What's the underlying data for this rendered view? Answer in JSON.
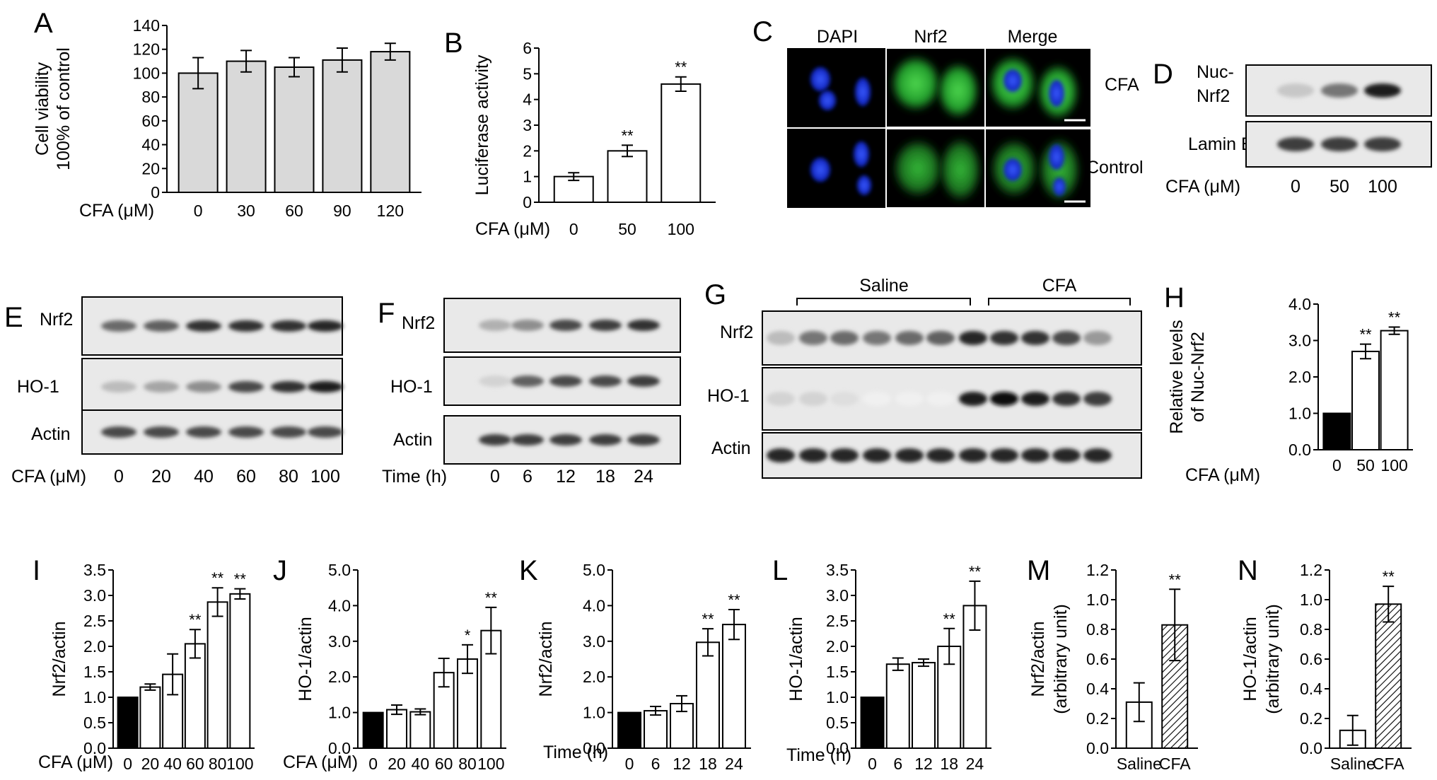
{
  "figure": {
    "panels": {
      "A": "A",
      "B": "B",
      "C": "C",
      "D": "D",
      "E": "E",
      "F": "F",
      "G": "G",
      "H": "H",
      "I": "I",
      "J": "J",
      "K": "K",
      "L": "L",
      "M": "M",
      "N": "N"
    }
  },
  "colors": {
    "black": "#000000",
    "gray_bar": "#d9d9d9",
    "white_bar": "#ffffff",
    "nucleus": "#1a33e6",
    "cytoplasm": "#2fa82f"
  },
  "panel_C": {
    "col_labels": [
      "DAPI",
      "Nrf2",
      "Merge"
    ],
    "row_labels": [
      "CFA",
      "Control"
    ]
  },
  "panel_D": {
    "bands": [
      "Nuc-\nNrf2",
      "Lamin B"
    ],
    "band_label_1": "Nuc-",
    "band_label_1b": "Nrf2",
    "band_label_2": "Lamin B",
    "axis_label": "CFA (μM)",
    "lanes": [
      "0",
      "50",
      "100"
    ],
    "nrf2_intensity": [
      0.2,
      0.55,
      0.95
    ],
    "laminb_intensity": [
      0.8,
      0.8,
      0.8
    ]
  },
  "panel_E": {
    "band_labels": [
      "Nrf2",
      "HO-1",
      "Actin"
    ],
    "axis_label": "CFA (μM)",
    "lanes": [
      "0",
      "20",
      "40",
      "60",
      "80",
      "100"
    ],
    "intensity": [
      [
        0.6,
        0.65,
        0.85,
        0.85,
        0.85,
        0.9
      ],
      [
        0.25,
        0.35,
        0.45,
        0.75,
        0.85,
        0.95
      ],
      [
        0.75,
        0.75,
        0.75,
        0.75,
        0.75,
        0.75
      ]
    ]
  },
  "panel_F": {
    "band_labels": [
      "Nrf2",
      "HO-1",
      "Actin"
    ],
    "axis_label": "Time (h)",
    "lanes": [
      "0",
      "6",
      "12",
      "18",
      "24"
    ],
    "intensity": [
      [
        0.3,
        0.45,
        0.75,
        0.8,
        0.85
      ],
      [
        0.15,
        0.65,
        0.75,
        0.75,
        0.8
      ],
      [
        0.8,
        0.8,
        0.8,
        0.8,
        0.8
      ]
    ]
  },
  "panel_G": {
    "group_labels": [
      "Saline",
      "CFA"
    ],
    "band_labels": [
      "Nrf2",
      "HO-1",
      "Actin"
    ],
    "intensity": [
      [
        0.25,
        0.55,
        0.6,
        0.55,
        0.6,
        0.65,
        0.9,
        0.85,
        0.85,
        0.75,
        0.4
      ],
      [
        0.15,
        0.15,
        0.1,
        0.02,
        0.02,
        0.02,
        0.95,
        1.0,
        0.95,
        0.85,
        0.8
      ],
      [
        0.9,
        0.9,
        0.9,
        0.9,
        0.9,
        0.9,
        0.9,
        0.9,
        0.9,
        0.9,
        0.9
      ]
    ]
  },
  "chart_data": [
    {
      "panel": "A",
      "type": "bar",
      "categories": [
        "0",
        "30",
        "60",
        "90",
        "120"
      ],
      "values": [
        100,
        110,
        105,
        111,
        118
      ],
      "errors": [
        13,
        9,
        8,
        10,
        7
      ],
      "ylabel_line1": "Cell viability",
      "ylabel_line2": "100% of control",
      "xlabel": "CFA (μM)",
      "ylim": [
        0,
        140
      ],
      "yticks": [
        "0",
        "20",
        "40",
        "60",
        "80",
        "100",
        "120",
        "140"
      ],
      "fills": [
        "gray",
        "gray",
        "gray",
        "gray",
        "gray"
      ],
      "sig": [
        "",
        "",
        "",
        "",
        ""
      ]
    },
    {
      "panel": "B",
      "type": "bar",
      "categories": [
        "0",
        "50",
        "100"
      ],
      "values": [
        1.0,
        2.0,
        4.6
      ],
      "errors": [
        0.15,
        0.22,
        0.28
      ],
      "ylabel_line1": "Luciferase activity",
      "ylabel_line2": "",
      "xlabel": "CFA (μM)",
      "ylim": [
        0,
        6
      ],
      "yticks": [
        "0",
        "1",
        "2",
        "3",
        "4",
        "5",
        "6"
      ],
      "fills": [
        "white",
        "white",
        "white"
      ],
      "sig": [
        "",
        "**",
        "**"
      ]
    },
    {
      "panel": "H",
      "type": "bar",
      "categories": [
        "0",
        "50",
        "100"
      ],
      "values": [
        1.0,
        2.7,
        3.27
      ],
      "errors": [
        0,
        0.2,
        0.1
      ],
      "ylabel_line1": "Relative levels",
      "ylabel_line2": "of Nuc-Nrf2",
      "xlabel": "CFA (μM)",
      "ylim": [
        0,
        4
      ],
      "yticks": [
        "0.0",
        "1.0",
        "2.0",
        "3.0",
        "4.0"
      ],
      "fills": [
        "black",
        "white",
        "white"
      ],
      "sig": [
        "",
        "**",
        "**"
      ]
    },
    {
      "panel": "I",
      "type": "bar",
      "categories": [
        "0",
        "20",
        "40",
        "60",
        "80",
        "100"
      ],
      "values": [
        1.0,
        1.2,
        1.45,
        2.05,
        2.87,
        3.03
      ],
      "errors": [
        0,
        0.06,
        0.4,
        0.28,
        0.28,
        0.1
      ],
      "ylabel_line1": "Nrf2/actin",
      "ylabel_line2": "",
      "xlabel": "CFA (μM)",
      "ylim": [
        0,
        3.5
      ],
      "yticks": [
        "0.0",
        "0.5",
        "1.0",
        "1.5",
        "2.0",
        "2.5",
        "3.0",
        "3.5"
      ],
      "fills": [
        "black",
        "white",
        "white",
        "white",
        "white",
        "white"
      ],
      "sig": [
        "",
        "",
        "",
        "**",
        "**",
        "**"
      ]
    },
    {
      "panel": "J",
      "type": "bar",
      "categories": [
        "0",
        "20",
        "40",
        "60",
        "80",
        "100"
      ],
      "values": [
        1.0,
        1.08,
        1.02,
        2.12,
        2.5,
        3.3
      ],
      "errors": [
        0,
        0.13,
        0.08,
        0.4,
        0.4,
        0.65
      ],
      "ylabel_line1": "HO-1/actin",
      "ylabel_line2": "",
      "xlabel": "CFA (μM)",
      "ylim": [
        0,
        5
      ],
      "yticks": [
        "0.0",
        "1.0",
        "2.0",
        "3.0",
        "4.0",
        "5.0"
      ],
      "fills": [
        "black",
        "white",
        "white",
        "white",
        "white",
        "white"
      ],
      "sig": [
        "",
        "",
        "",
        "",
        "*",
        "**"
      ]
    },
    {
      "panel": "K",
      "type": "bar",
      "categories": [
        "0",
        "6",
        "12",
        "18",
        "24"
      ],
      "values": [
        1.0,
        1.05,
        1.25,
        2.97,
        3.47
      ],
      "errors": [
        0,
        0.12,
        0.22,
        0.38,
        0.42
      ],
      "ylabel_line1": "Nrf2/actin",
      "ylabel_line2": "",
      "xlabel": "Time (h)",
      "ylim": [
        0,
        5
      ],
      "yticks": [
        "0.0",
        "1.0",
        "2.0",
        "3.0",
        "4.0",
        "5.0"
      ],
      "fills": [
        "black",
        "white",
        "white",
        "white",
        "white"
      ],
      "sig": [
        "",
        "",
        "",
        "**",
        "**"
      ]
    },
    {
      "panel": "L",
      "type": "bar",
      "categories": [
        "0",
        "6",
        "12",
        "18",
        "24"
      ],
      "values": [
        1.0,
        1.65,
        1.68,
        2.0,
        2.8
      ],
      "errors": [
        0,
        0.12,
        0.07,
        0.35,
        0.48
      ],
      "ylabel_line1": "HO-1/actin",
      "ylabel_line2": "",
      "xlabel": "Time (h)",
      "ylim": [
        0,
        3.5
      ],
      "yticks": [
        "0.0",
        "0.5",
        "1.0",
        "1.5",
        "2.0",
        "2.5",
        "3.0",
        "3.5"
      ],
      "fills": [
        "black",
        "white",
        "white",
        "white",
        "white"
      ],
      "sig": [
        "",
        "",
        "",
        "**",
        "**"
      ]
    },
    {
      "panel": "M",
      "type": "bar",
      "categories": [
        "Saline",
        "CFA"
      ],
      "values": [
        0.31,
        0.83
      ],
      "errors": [
        0.13,
        0.24
      ],
      "ylabel_line1": "Nrf2/actin",
      "ylabel_line2": "(arbitrary unit)",
      "xlabel": "",
      "ylim": [
        0,
        1.2
      ],
      "yticks": [
        "0.0",
        "0.2",
        "0.4",
        "0.6",
        "0.8",
        "1.0",
        "1.2"
      ],
      "fills": [
        "white",
        "hatch"
      ],
      "sig": [
        "",
        "**"
      ]
    },
    {
      "panel": "N",
      "type": "bar",
      "categories": [
        "Saline",
        "CFA"
      ],
      "values": [
        0.12,
        0.97
      ],
      "errors": [
        0.1,
        0.12
      ],
      "ylabel_line1": "HO-1/actin",
      "ylabel_line2": "(arbitrary unit)",
      "xlabel": "",
      "ylim": [
        0,
        1.2
      ],
      "yticks": [
        "0.0",
        "0.2",
        "0.4",
        "0.6",
        "0.8",
        "1.0",
        "1.2"
      ],
      "fills": [
        "white",
        "hatch"
      ],
      "sig": [
        "",
        "**"
      ]
    }
  ]
}
